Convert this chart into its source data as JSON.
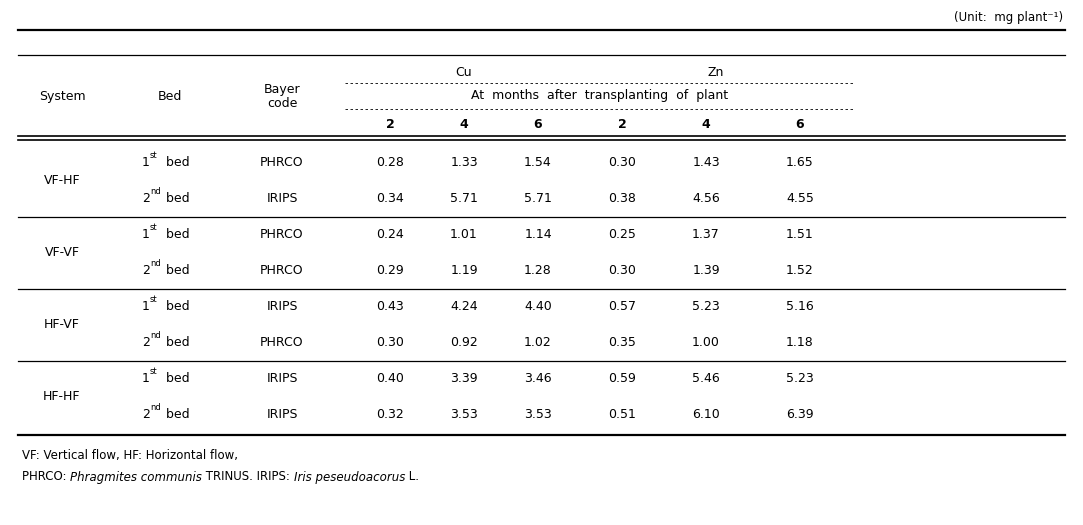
{
  "unit_label": "(Unit:  mg plant⁻¹)",
  "cu_label": "Cu",
  "zn_label": "Zn",
  "months_label": "At  months  after  transplanting  of  plant",
  "month_values": [
    "2",
    "4",
    "6",
    "2",
    "4",
    "6"
  ],
  "fixed_col_headers": [
    "System",
    "Bed",
    "Bayer\ncode"
  ],
  "rows": [
    {
      "system": "VF-HF",
      "bed_num": "1",
      "bed_sup": "st",
      "bayer": "PHRCO",
      "vals": [
        "0.28",
        "1.33",
        "1.54",
        "0.30",
        "1.43",
        "1.65"
      ]
    },
    {
      "system": "",
      "bed_num": "2",
      "bed_sup": "nd",
      "bayer": "IRIPS",
      "vals": [
        "0.34",
        "5.71",
        "5.71",
        "0.38",
        "4.56",
        "4.55"
      ]
    },
    {
      "system": "VF-VF",
      "bed_num": "1",
      "bed_sup": "st",
      "bayer": "PHRCO",
      "vals": [
        "0.24",
        "1.01",
        "1.14",
        "0.25",
        "1.37",
        "1.51"
      ]
    },
    {
      "system": "",
      "bed_num": "2",
      "bed_sup": "nd",
      "bayer": "PHRCO",
      "vals": [
        "0.29",
        "1.19",
        "1.28",
        "0.30",
        "1.39",
        "1.52"
      ]
    },
    {
      "system": "HF-VF",
      "bed_num": "1",
      "bed_sup": "st",
      "bayer": "IRIPS",
      "vals": [
        "0.43",
        "4.24",
        "4.40",
        "0.57",
        "5.23",
        "5.16"
      ]
    },
    {
      "system": "",
      "bed_num": "2",
      "bed_sup": "nd",
      "bayer": "PHRCO",
      "vals": [
        "0.30",
        "0.92",
        "1.02",
        "0.35",
        "1.00",
        "1.18"
      ]
    },
    {
      "system": "HF-HF",
      "bed_num": "1",
      "bed_sup": "st",
      "bayer": "IRIPS",
      "vals": [
        "0.40",
        "3.39",
        "3.46",
        "0.59",
        "5.46",
        "5.23"
      ]
    },
    {
      "system": "",
      "bed_num": "2",
      "bed_sup": "nd",
      "bayer": "IRIPS",
      "vals": [
        "0.32",
        "3.53",
        "3.53",
        "0.51",
        "6.10",
        "6.39"
      ]
    }
  ],
  "system_labels": [
    "VF-HF",
    "VF-VF",
    "HF-VF",
    "HF-HF"
  ],
  "bg_color": "#ffffff",
  "text_color": "#000000",
  "font_size": 9.0,
  "footnote1": "VF: Vertical flow, HF: Horizontal flow,",
  "footnote2_parts": [
    {
      "text": "PHRCO: ",
      "italic": false
    },
    {
      "text": "Phragmites communis",
      "italic": true
    },
    {
      "text": " TRINUS. IRIPS: ",
      "italic": false
    },
    {
      "text": "Iris peseudoacorus",
      "italic": true
    },
    {
      "text": " L.",
      "italic": false
    }
  ]
}
